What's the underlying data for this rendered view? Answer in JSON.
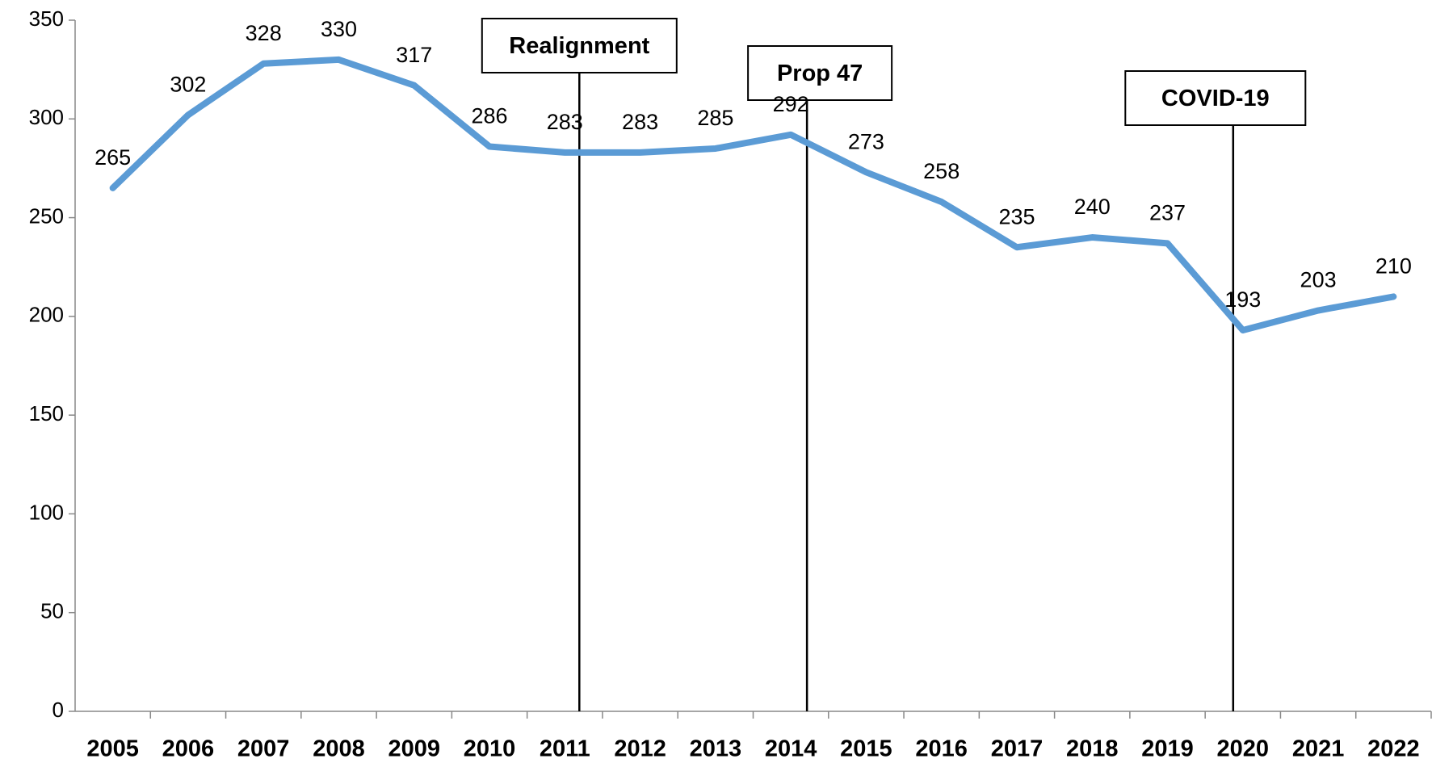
{
  "chart_data": {
    "type": "line",
    "categories": [
      "2005",
      "2006",
      "2007",
      "2008",
      "2009",
      "2010",
      "2011",
      "2012",
      "2013",
      "2014",
      "2015",
      "2016",
      "2017",
      "2018",
      "2019",
      "2020",
      "2021",
      "2022"
    ],
    "series": [
      {
        "color": "#5b9bd5",
        "values": [
          265,
          302,
          328,
          330,
          317,
          286,
          283,
          283,
          285,
          292,
          273,
          258,
          235,
          240,
          237,
          193,
          203,
          210
        ]
      }
    ],
    "ylim": [
      0,
      350
    ],
    "yticks": [
      0,
      50,
      100,
      150,
      200,
      250,
      300,
      350
    ],
    "grid": false,
    "annotations": [
      {
        "text": "Realignment",
        "category": "2011"
      },
      {
        "text": "Prop 47",
        "category": "2014"
      },
      {
        "text": "COVID-19",
        "category": "2020"
      }
    ]
  }
}
